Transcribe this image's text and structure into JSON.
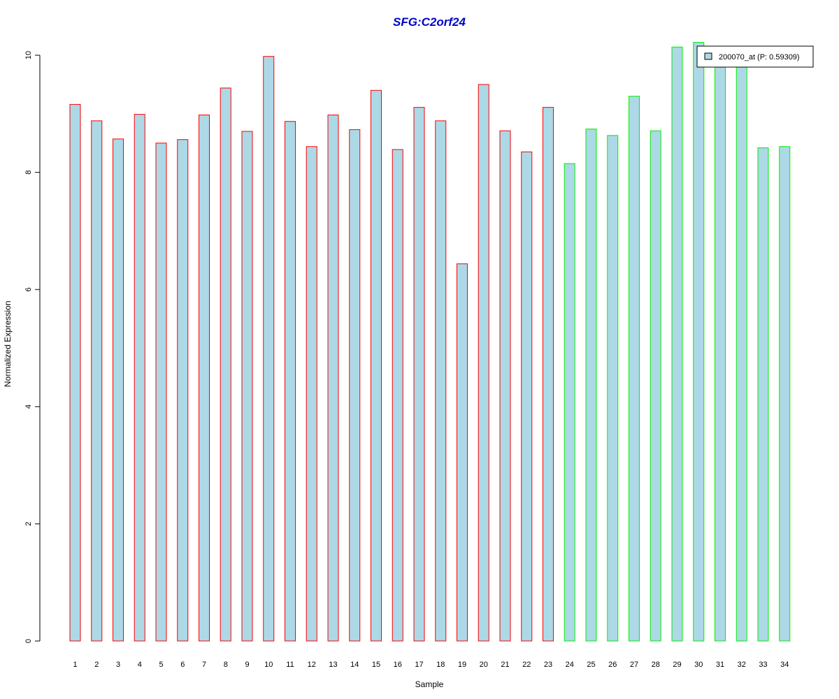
{
  "chart_data": {
    "type": "bar",
    "title": "SFG:C2orf24",
    "xlabel": "Sample",
    "ylabel": "Normalized Expression",
    "categories": [
      "1",
      "2",
      "3",
      "4",
      "5",
      "6",
      "7",
      "8",
      "9",
      "10",
      "11",
      "12",
      "13",
      "14",
      "15",
      "16",
      "17",
      "18",
      "19",
      "20",
      "21",
      "22",
      "23",
      "24",
      "25",
      "26",
      "27",
      "28",
      "29",
      "30",
      "31",
      "32",
      "33",
      "34"
    ],
    "series": [
      {
        "name": "200070_at (P: 0.59309)",
        "values": [
          9.16,
          8.88,
          8.57,
          8.99,
          8.5,
          8.56,
          8.98,
          9.44,
          8.7,
          9.98,
          8.87,
          8.44,
          8.98,
          8.73,
          9.4,
          8.39,
          9.11,
          8.88,
          6.44,
          9.5,
          8.71,
          8.35,
          9.11,
          8.15,
          8.74,
          8.63,
          9.3,
          8.71,
          10.14,
          10.22,
          9.88,
          9.95,
          8.42,
          8.44
        ]
      }
    ],
    "bar_groups": [
      {
        "from": 1,
        "to": 23,
        "border_color": "#ff0000"
      },
      {
        "from": 24,
        "to": 34,
        "border_color": "#00ee00"
      }
    ],
    "ylim": [
      0,
      10
    ],
    "yticks": [
      0,
      2,
      4,
      6,
      8,
      10
    ],
    "legend_position": "top-right",
    "grid": false
  },
  "colors": {
    "bar_fill": "#add8e6",
    "title": "#0000cc",
    "axis": "#000000"
  }
}
